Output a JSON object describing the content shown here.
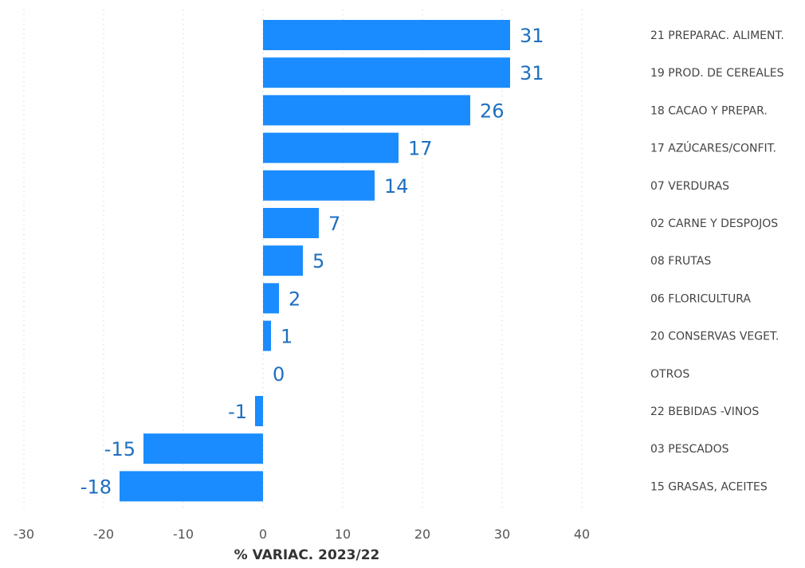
{
  "chart_data": {
    "type": "bar",
    "orientation": "horizontal",
    "xlabel": "% VARIAC. 2023/22",
    "xlim": [
      -30,
      40
    ],
    "xticks": [
      -30,
      -20,
      -10,
      0,
      10,
      20,
      30,
      40
    ],
    "grid": true,
    "bar_color": "#1a8cff",
    "label_color": "#1d6fbf",
    "categories": [
      "21 PREPARAC. ALIMENT.",
      "19 PROD. DE CEREALES",
      "18 CACAO Y PREPAR.",
      "17 AZÚCARES/CONFIT.",
      "07 VERDURAS",
      "02 CARNE Y DESPOJOS",
      "08 FRUTAS",
      "06 FLORICULTURA",
      "20 CONSERVAS VEGET.",
      "OTROS",
      "22 BEBIDAS -VINOS",
      "03 PESCADOS",
      "15 GRASAS, ACEITES"
    ],
    "values": [
      31,
      31,
      26,
      17,
      14,
      7,
      5,
      2,
      1,
      0,
      -1,
      -15,
      -18
    ],
    "data_labels": [
      "31",
      "31",
      "26",
      "17",
      "14",
      "7",
      "5",
      "2",
      "1",
      "0",
      "-1",
      "-15",
      "-18"
    ]
  }
}
